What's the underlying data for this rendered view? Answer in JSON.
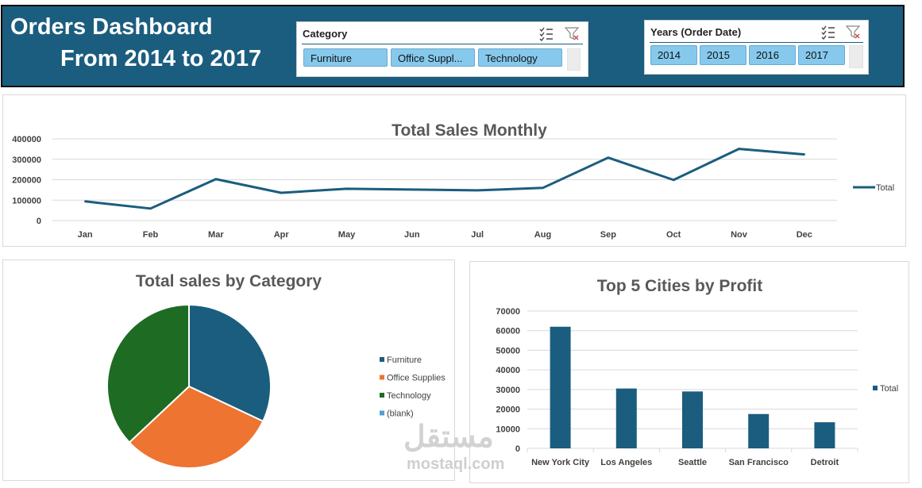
{
  "header": {
    "title_line1": "Orders Dashboard",
    "title_line2": "From 2014 to 2017",
    "background": "#1b5d7e"
  },
  "category_slicer": {
    "title": "Category",
    "items": [
      "Furniture",
      "Office Suppl...",
      "Technology"
    ],
    "icons": [
      "multi-select-icon",
      "clear-filter-icon"
    ],
    "selected_color": "#86c9ec"
  },
  "years_slicer": {
    "title": "Years (Order Date)",
    "items": [
      "2014",
      "2015",
      "2016",
      "2017"
    ],
    "icons": [
      "multi-select-icon",
      "clear-filter-icon"
    ]
  },
  "watermark": {
    "arabic": "مستقل",
    "latin": "mostaql.com"
  },
  "chart_data": [
    {
      "type": "line",
      "title": "Total Sales Monthly",
      "categories": [
        "Jan",
        "Feb",
        "Mar",
        "Apr",
        "May",
        "Jun",
        "Jul",
        "Aug",
        "Sep",
        "Oct",
        "Nov",
        "Dec"
      ],
      "series": [
        {
          "name": "Total",
          "color": "#1b5d7e",
          "values": [
            94000,
            59000,
            203000,
            136000,
            156000,
            152000,
            148000,
            160000,
            308000,
            199000,
            351000,
            324000
          ]
        }
      ],
      "yticks": [
        "0",
        "100000",
        "200000",
        "300000",
        "400000"
      ],
      "ylim": [
        0,
        400000
      ],
      "grid": true,
      "legend": "right"
    },
    {
      "type": "pie",
      "title": "Total sales by Category",
      "labels": [
        "Furniture",
        "Office Supplies",
        "Technology",
        "(blank)"
      ],
      "values": [
        32,
        31,
        37,
        0
      ],
      "colors": [
        "#1b5d7e",
        "#ed7431",
        "#1e6b24",
        "#4ea1d3"
      ],
      "legend": "right"
    },
    {
      "type": "bar",
      "title": "Top 5 Cities by Profit",
      "categories": [
        "New York City",
        "Los Angeles",
        "Seattle",
        "San Francisco",
        "Detroit"
      ],
      "series": [
        {
          "name": "Total",
          "color": "#1b5d7e",
          "values": [
            62000,
            30500,
            29000,
            17500,
            13300
          ]
        }
      ],
      "yticks": [
        "0",
        "10000",
        "20000",
        "30000",
        "40000",
        "50000",
        "60000",
        "70000"
      ],
      "ylim": [
        0,
        70000
      ],
      "grid": true,
      "legend": "right"
    }
  ]
}
